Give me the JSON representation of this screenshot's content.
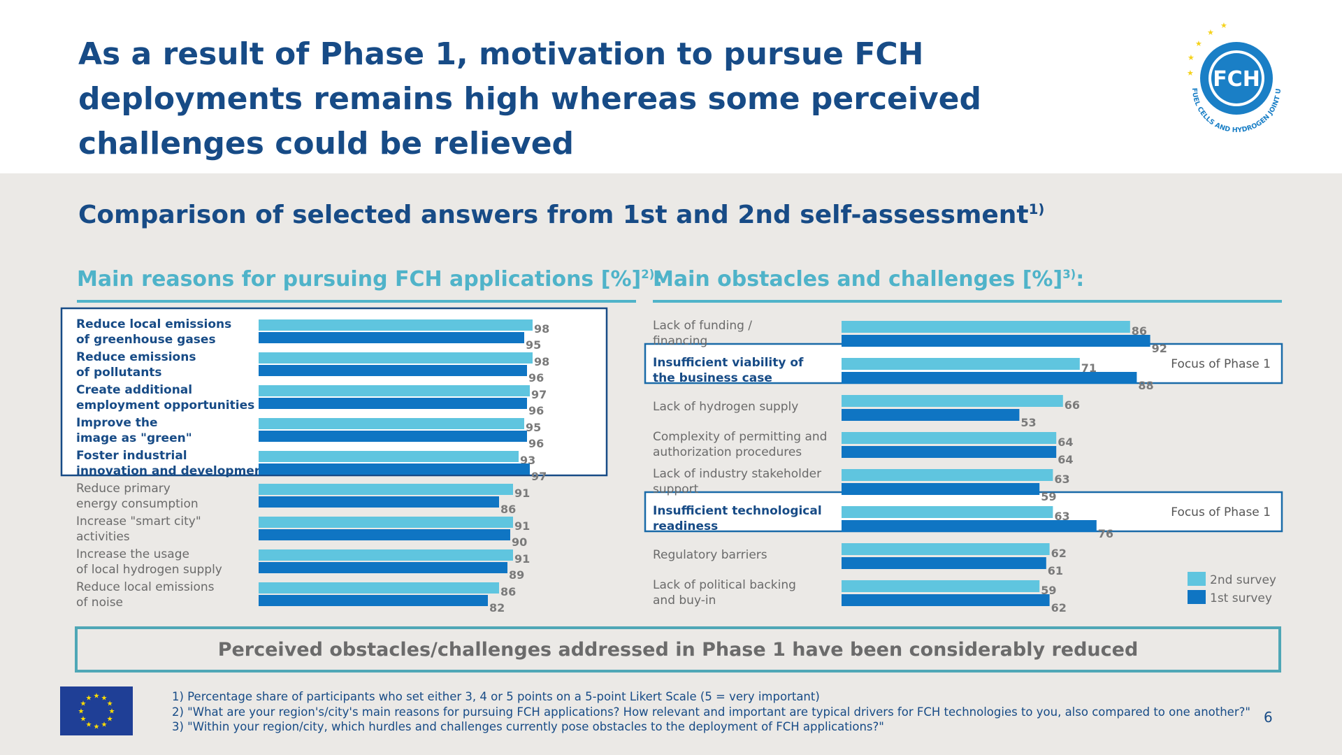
{
  "title": "As a result of Phase 1, motivation to pursue FCH deployments remains high whereas some perceived challenges could be relieved",
  "logo": {
    "text": "FCH",
    "ring_text": "FUEL CELLS AND HYDROGEN JOINT UNDERTAKING"
  },
  "subtitle": {
    "text": "Comparison of selected answers from 1st and 2nd self-assessment",
    "sup": "1)"
  },
  "left_section": {
    "title": "Main reasons for pursuing FCH applications [%]",
    "sup": "2)",
    "colon": ":"
  },
  "right_section": {
    "title": "Main obstacles and challenges [%]",
    "sup": "3)",
    "colon": ":"
  },
  "focus_label": "Focus of Phase 1",
  "conclusion": "Perceived obstacles/challenges addressed in Phase 1 have been considerably reduced",
  "footnotes": [
    "1) Percentage share of participants who set either 3, 4 or 5 points on a 5-point Likert Scale (5 = very important)",
    "2) \"What are your region's/city's main reasons for pursuing FCH applications? How relevant and important are typical drivers for FCH technologies to you, also compared to one another?\"",
    "3) \"Within your region/city, which hurdles and challenges currently pose obstacles to the deployment of FCH applications?\""
  ],
  "page_number": "6",
  "colors": {
    "second_survey": "#5fc5df",
    "first_survey": "#0f75c3",
    "title": "#174b86",
    "section": "#4fb3c9",
    "panel": "#ebe9e6"
  },
  "chart_data": [
    {
      "type": "bar",
      "orientation": "horizontal",
      "title": "Main reasons for pursuing FCH applications [%]",
      "categories": [
        [
          "Reduce local emissions",
          "of greenhouse gases"
        ],
        [
          "Reduce emissions",
          "of pollutants"
        ],
        [
          "Create additional",
          "employment opportunities"
        ],
        [
          "Improve the",
          "image as \"green\""
        ],
        [
          "Foster industrial",
          "innovation and development"
        ],
        [
          "Reduce primary",
          "energy consumption"
        ],
        [
          "Increase \"smart city\"",
          "activities"
        ],
        [
          "Increase the usage",
          "of local hydrogen supply"
        ],
        [
          "Reduce local emissions",
          "of noise"
        ]
      ],
      "highlighted": [
        0,
        1,
        2,
        3,
        4
      ],
      "series": [
        {
          "name": "2nd survey",
          "values": [
            98,
            98,
            97,
            95,
            93,
            91,
            91,
            91,
            86
          ]
        },
        {
          "name": "1st survey",
          "values": [
            95,
            96,
            96,
            96,
            97,
            86,
            90,
            89,
            82
          ]
        }
      ],
      "xlim": [
        0,
        100
      ],
      "grid": false
    },
    {
      "type": "bar",
      "orientation": "horizontal",
      "title": "Main obstacles and challenges [%]",
      "categories": [
        [
          "Lack of funding /",
          "financing"
        ],
        [
          "Insufficient viability of",
          "the business case"
        ],
        [
          "Lack of hydrogen supply"
        ],
        [
          "Complexity of permitting and",
          "authorization procedures"
        ],
        [
          "Lack of industry stakeholder",
          "support"
        ],
        [
          "Insufficient technological",
          "readiness"
        ],
        [
          "Regulatory barriers"
        ],
        [
          "Lack of political backing",
          "and buy-in"
        ]
      ],
      "highlighted": [
        1,
        5
      ],
      "series": [
        {
          "name": "2nd survey",
          "values": [
            86,
            71,
            66,
            64,
            63,
            63,
            62,
            59
          ]
        },
        {
          "name": "1st survey",
          "values": [
            92,
            88,
            53,
            64,
            59,
            76,
            61,
            62
          ]
        }
      ],
      "xlim": [
        0,
        100
      ],
      "legend": {
        "position": "bottom-right",
        "entries": [
          "2nd survey",
          "1st survey"
        ]
      },
      "grid": false
    }
  ]
}
